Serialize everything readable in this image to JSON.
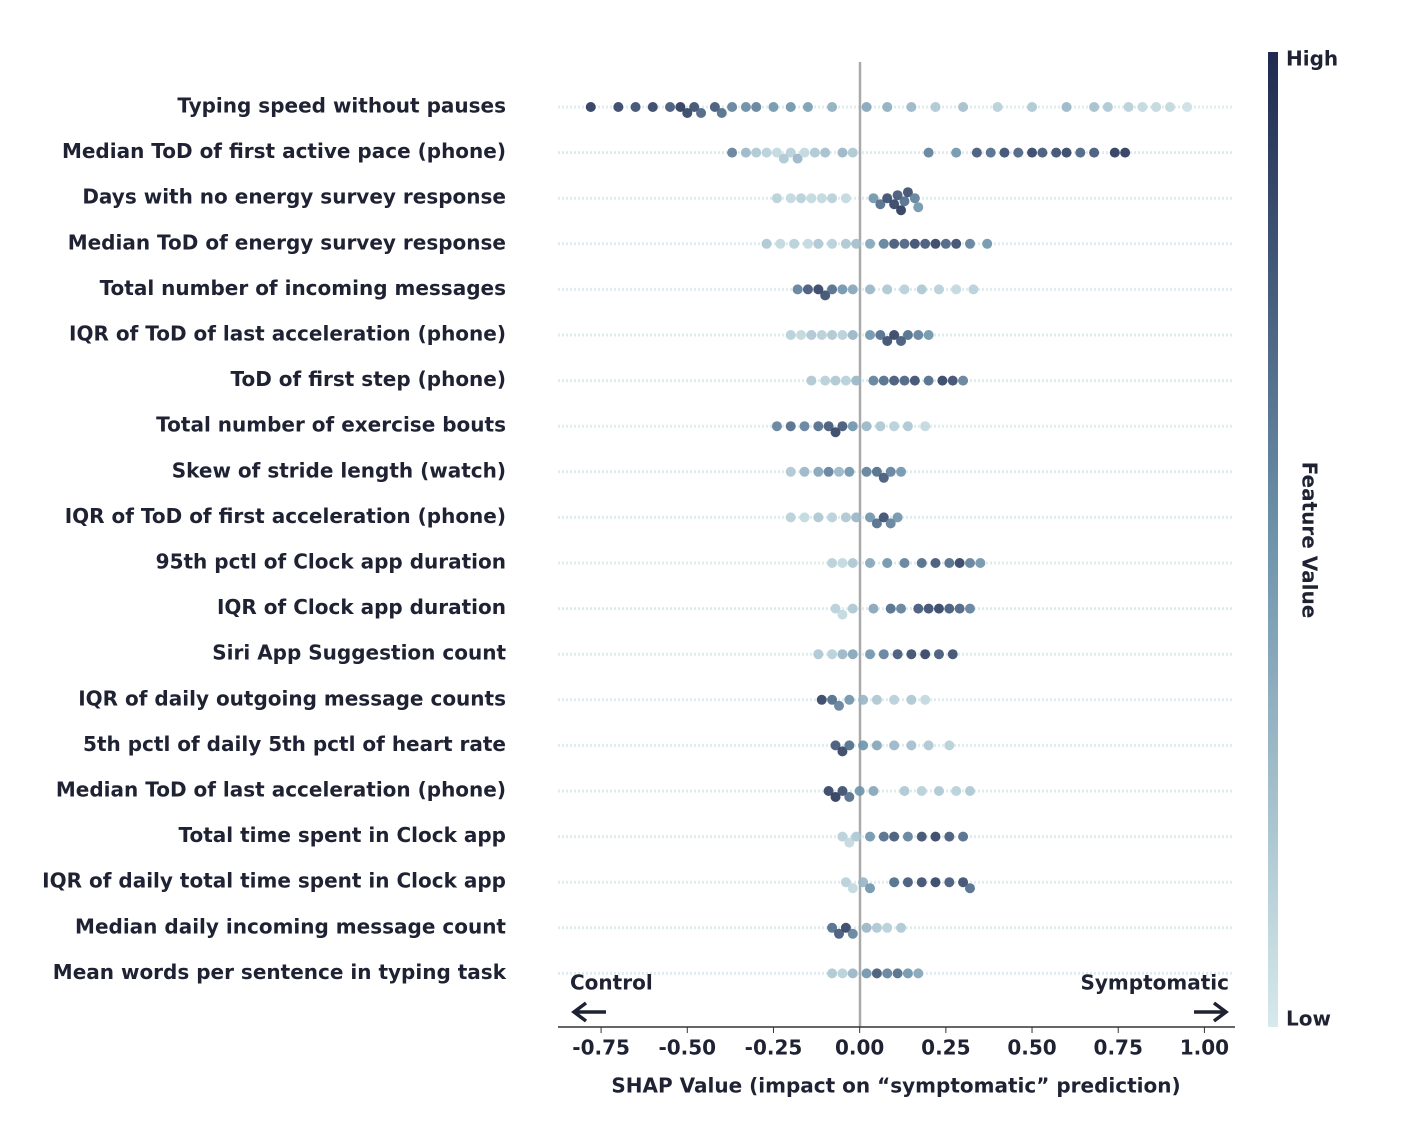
{
  "chart_data": {
    "type": "beeswarm",
    "x_label": "SHAP Value (impact on “symptomatic” prediction)",
    "left_annotation": "Control",
    "right_annotation": "Symptomatic",
    "colorbar": {
      "title": "Feature Value",
      "high_label": "High",
      "low_label": "Low"
    },
    "colormap": [
      "#d6e9eb",
      "#6e93ab",
      "#1f2a50"
    ],
    "xlim": [
      -0.875,
      1.08
    ],
    "xticks": [
      -0.75,
      {
        "value": -0.5,
        "label": "-0.50"
      },
      -0.25,
      {
        "value": 0,
        "label": "0.00"
      },
      0.25,
      {
        "value": 0.5,
        "label": "0.50"
      },
      0.75,
      {
        "value": 1,
        "label": "1.00"
      }
    ],
    "rows": [
      {
        "label": "Typing speed without pauses",
        "points": [
          [
            -0.78,
            0.95
          ],
          [
            -0.7,
            0.9
          ],
          [
            -0.65,
            0.85
          ],
          [
            -0.6,
            0.9
          ],
          [
            -0.55,
            0.8
          ],
          [
            -0.52,
            0.95
          ],
          [
            -0.5,
            0.9
          ],
          [
            -0.48,
            0.85
          ],
          [
            -0.46,
            0.75
          ],
          [
            -0.42,
            0.8
          ],
          [
            -0.4,
            0.7
          ],
          [
            -0.37,
            0.6
          ],
          [
            -0.33,
            0.55
          ],
          [
            -0.3,
            0.6
          ],
          [
            -0.25,
            0.5
          ],
          [
            -0.2,
            0.5
          ],
          [
            -0.15,
            0.45
          ],
          [
            -0.08,
            0.35
          ],
          [
            0.02,
            0.4
          ],
          [
            0.08,
            0.35
          ],
          [
            0.15,
            0.3
          ],
          [
            0.22,
            0.2
          ],
          [
            0.3,
            0.25
          ],
          [
            0.4,
            0.15
          ],
          [
            0.5,
            0.2
          ],
          [
            0.6,
            0.3
          ],
          [
            0.68,
            0.25
          ],
          [
            0.72,
            0.2
          ],
          [
            0.78,
            0.15
          ],
          [
            0.82,
            0.1
          ],
          [
            0.86,
            0.1
          ],
          [
            0.9,
            0.1
          ],
          [
            0.95,
            0.05
          ]
        ]
      },
      {
        "label": "Median ToD of first active pace (phone)",
        "points": [
          [
            -0.37,
            0.6
          ],
          [
            -0.33,
            0.3
          ],
          [
            -0.3,
            0.2
          ],
          [
            -0.27,
            0.15
          ],
          [
            -0.24,
            0.1
          ],
          [
            -0.22,
            0.2
          ],
          [
            -0.2,
            0.15
          ],
          [
            -0.18,
            0.3
          ],
          [
            -0.16,
            0.1
          ],
          [
            -0.13,
            0.2
          ],
          [
            -0.1,
            0.25
          ],
          [
            -0.05,
            0.3
          ],
          [
            -0.02,
            0.2
          ],
          [
            0.2,
            0.6
          ],
          [
            0.28,
            0.5
          ],
          [
            0.34,
            0.8
          ],
          [
            0.38,
            0.7
          ],
          [
            0.42,
            0.85
          ],
          [
            0.46,
            0.75
          ],
          [
            0.5,
            0.9
          ],
          [
            0.53,
            0.8
          ],
          [
            0.57,
            0.85
          ],
          [
            0.6,
            0.9
          ],
          [
            0.64,
            0.75
          ],
          [
            0.68,
            0.8
          ],
          [
            0.74,
            0.95
          ],
          [
            0.77,
            0.95
          ]
        ]
      },
      {
        "label": "Days with no energy survey response",
        "points": [
          [
            -0.24,
            0.15
          ],
          [
            -0.2,
            0.1
          ],
          [
            -0.17,
            0.15
          ],
          [
            -0.14,
            0.1
          ],
          [
            -0.11,
            0.1
          ],
          [
            -0.08,
            0.15
          ],
          [
            -0.04,
            0.1
          ],
          [
            0.04,
            0.5
          ],
          [
            0.06,
            0.7
          ],
          [
            0.08,
            0.85
          ],
          [
            0.1,
            0.9
          ],
          [
            0.11,
            0.8
          ],
          [
            0.12,
            0.95
          ],
          [
            0.13,
            0.7
          ],
          [
            0.14,
            0.85
          ],
          [
            0.16,
            0.6
          ],
          [
            0.17,
            0.5
          ]
        ]
      },
      {
        "label": "Median ToD of energy survey response",
        "points": [
          [
            -0.27,
            0.2
          ],
          [
            -0.23,
            0.1
          ],
          [
            -0.19,
            0.15
          ],
          [
            -0.15,
            0.1
          ],
          [
            -0.12,
            0.2
          ],
          [
            -0.08,
            0.15
          ],
          [
            -0.04,
            0.2
          ],
          [
            -0.01,
            0.25
          ],
          [
            0.03,
            0.4
          ],
          [
            0.07,
            0.6
          ],
          [
            0.1,
            0.8
          ],
          [
            0.13,
            0.75
          ],
          [
            0.16,
            0.85
          ],
          [
            0.19,
            0.8
          ],
          [
            0.22,
            0.9
          ],
          [
            0.25,
            0.75
          ],
          [
            0.28,
            0.85
          ],
          [
            0.32,
            0.6
          ],
          [
            0.37,
            0.5
          ]
        ]
      },
      {
        "label": "Total number of incoming messages",
        "points": [
          [
            -0.18,
            0.6
          ],
          [
            -0.15,
            0.8
          ],
          [
            -0.12,
            0.9
          ],
          [
            -0.1,
            0.85
          ],
          [
            -0.08,
            0.7
          ],
          [
            -0.05,
            0.5
          ],
          [
            -0.02,
            0.4
          ],
          [
            0.03,
            0.3
          ],
          [
            0.08,
            0.2
          ],
          [
            0.13,
            0.15
          ],
          [
            0.18,
            0.2
          ],
          [
            0.23,
            0.15
          ],
          [
            0.28,
            0.1
          ],
          [
            0.33,
            0.15
          ]
        ]
      },
      {
        "label": "IQR of ToD of last acceleration (phone)",
        "points": [
          [
            -0.2,
            0.15
          ],
          [
            -0.17,
            0.1
          ],
          [
            -0.14,
            0.2
          ],
          [
            -0.11,
            0.15
          ],
          [
            -0.08,
            0.2
          ],
          [
            -0.05,
            0.15
          ],
          [
            -0.02,
            0.3
          ],
          [
            0.03,
            0.5
          ],
          [
            0.06,
            0.7
          ],
          [
            0.08,
            0.85
          ],
          [
            0.1,
            0.9
          ],
          [
            0.12,
            0.8
          ],
          [
            0.14,
            0.7
          ],
          [
            0.17,
            0.6
          ],
          [
            0.2,
            0.5
          ]
        ]
      },
      {
        "label": "ToD of first step (phone)",
        "points": [
          [
            -0.14,
            0.2
          ],
          [
            -0.1,
            0.15
          ],
          [
            -0.07,
            0.2
          ],
          [
            -0.04,
            0.15
          ],
          [
            -0.01,
            0.3
          ],
          [
            0.04,
            0.6
          ],
          [
            0.07,
            0.7
          ],
          [
            0.1,
            0.8
          ],
          [
            0.13,
            0.75
          ],
          [
            0.16,
            0.85
          ],
          [
            0.2,
            0.7
          ],
          [
            0.24,
            0.9
          ],
          [
            0.27,
            0.85
          ],
          [
            0.3,
            0.6
          ]
        ]
      },
      {
        "label": "Total number of exercise bouts",
        "points": [
          [
            -0.24,
            0.6
          ],
          [
            -0.2,
            0.7
          ],
          [
            -0.16,
            0.6
          ],
          [
            -0.12,
            0.7
          ],
          [
            -0.09,
            0.8
          ],
          [
            -0.07,
            0.9
          ],
          [
            -0.05,
            0.8
          ],
          [
            -0.02,
            0.5
          ],
          [
            0.02,
            0.3
          ],
          [
            0.06,
            0.2
          ],
          [
            0.1,
            0.15
          ],
          [
            0.14,
            0.2
          ],
          [
            0.19,
            0.1
          ]
        ]
      },
      {
        "label": "Skew of stride length (watch)",
        "points": [
          [
            -0.2,
            0.2
          ],
          [
            -0.16,
            0.3
          ],
          [
            -0.12,
            0.4
          ],
          [
            -0.09,
            0.6
          ],
          [
            -0.06,
            0.3
          ],
          [
            -0.03,
            0.5
          ],
          [
            0.02,
            0.6
          ],
          [
            0.05,
            0.7
          ],
          [
            0.07,
            0.8
          ],
          [
            0.09,
            0.6
          ],
          [
            0.12,
            0.5
          ]
        ]
      },
      {
        "label": "IQR of ToD of first acceleration (phone)",
        "points": [
          [
            -0.2,
            0.15
          ],
          [
            -0.16,
            0.1
          ],
          [
            -0.12,
            0.2
          ],
          [
            -0.08,
            0.15
          ],
          [
            -0.04,
            0.2
          ],
          [
            -0.01,
            0.3
          ],
          [
            0.03,
            0.5
          ],
          [
            0.05,
            0.7
          ],
          [
            0.07,
            0.85
          ],
          [
            0.09,
            0.6
          ],
          [
            0.11,
            0.5
          ]
        ]
      },
      {
        "label": "95th pctl of Clock app duration",
        "points": [
          [
            -0.08,
            0.15
          ],
          [
            -0.05,
            0.1
          ],
          [
            -0.02,
            0.2
          ],
          [
            0.03,
            0.4
          ],
          [
            0.08,
            0.5
          ],
          [
            0.13,
            0.6
          ],
          [
            0.18,
            0.7
          ],
          [
            0.22,
            0.8
          ],
          [
            0.26,
            0.7
          ],
          [
            0.29,
            0.9
          ],
          [
            0.32,
            0.6
          ],
          [
            0.35,
            0.5
          ]
        ]
      },
      {
        "label": "IQR of Clock app duration",
        "points": [
          [
            -0.07,
            0.15
          ],
          [
            -0.05,
            0.1
          ],
          [
            -0.02,
            0.2
          ],
          [
            0.04,
            0.4
          ],
          [
            0.09,
            0.7
          ],
          [
            0.12,
            0.6
          ],
          [
            0.17,
            0.8
          ],
          [
            0.2,
            0.85
          ],
          [
            0.23,
            0.9
          ],
          [
            0.26,
            0.8
          ],
          [
            0.29,
            0.75
          ],
          [
            0.32,
            0.6
          ]
        ]
      },
      {
        "label": "Siri App Suggestion count",
        "points": [
          [
            -0.12,
            0.2
          ],
          [
            -0.08,
            0.15
          ],
          [
            -0.05,
            0.3
          ],
          [
            -0.02,
            0.4
          ],
          [
            0.03,
            0.5
          ],
          [
            0.07,
            0.6
          ],
          [
            0.11,
            0.8
          ],
          [
            0.15,
            0.85
          ],
          [
            0.19,
            0.9
          ],
          [
            0.23,
            0.8
          ],
          [
            0.27,
            0.85
          ]
        ]
      },
      {
        "label": "IQR of daily outgoing message counts",
        "points": [
          [
            -0.11,
            0.9
          ],
          [
            -0.08,
            0.7
          ],
          [
            -0.06,
            0.6
          ],
          [
            -0.03,
            0.5
          ],
          [
            0.01,
            0.3
          ],
          [
            0.05,
            0.2
          ],
          [
            0.1,
            0.15
          ],
          [
            0.15,
            0.2
          ],
          [
            0.19,
            0.1
          ]
        ]
      },
      {
        "label": "5th pctl of daily 5th pctl of heart rate",
        "points": [
          [
            -0.07,
            0.8
          ],
          [
            -0.05,
            0.9
          ],
          [
            -0.03,
            0.7
          ],
          [
            0.01,
            0.5
          ],
          [
            0.05,
            0.4
          ],
          [
            0.1,
            0.3
          ],
          [
            0.15,
            0.25
          ],
          [
            0.2,
            0.2
          ],
          [
            0.26,
            0.15
          ]
        ]
      },
      {
        "label": "Median ToD of last acceleration (phone)",
        "points": [
          [
            -0.09,
            0.9
          ],
          [
            -0.07,
            0.95
          ],
          [
            -0.05,
            0.85
          ],
          [
            -0.03,
            0.7
          ],
          [
            0.0,
            0.5
          ],
          [
            0.04,
            0.4
          ],
          [
            0.13,
            0.2
          ],
          [
            0.18,
            0.15
          ],
          [
            0.23,
            0.2
          ],
          [
            0.28,
            0.15
          ],
          [
            0.32,
            0.2
          ]
        ]
      },
      {
        "label": "Total time spent in Clock app",
        "points": [
          [
            -0.05,
            0.15
          ],
          [
            -0.03,
            0.1
          ],
          [
            -0.01,
            0.2
          ],
          [
            0.03,
            0.5
          ],
          [
            0.07,
            0.7
          ],
          [
            0.1,
            0.8
          ],
          [
            0.14,
            0.6
          ],
          [
            0.18,
            0.85
          ],
          [
            0.22,
            0.9
          ],
          [
            0.26,
            0.8
          ],
          [
            0.3,
            0.7
          ]
        ]
      },
      {
        "label": "IQR of daily total time spent in Clock app",
        "points": [
          [
            -0.04,
            0.15
          ],
          [
            -0.02,
            0.1
          ],
          [
            0.01,
            0.3
          ],
          [
            0.03,
            0.5
          ],
          [
            0.1,
            0.7
          ],
          [
            0.14,
            0.8
          ],
          [
            0.18,
            0.85
          ],
          [
            0.22,
            0.9
          ],
          [
            0.26,
            0.8
          ],
          [
            0.3,
            0.85
          ],
          [
            0.32,
            0.7
          ]
        ]
      },
      {
        "label": "Median daily incoming message count",
        "points": [
          [
            -0.08,
            0.7
          ],
          [
            -0.06,
            0.8
          ],
          [
            -0.04,
            0.9
          ],
          [
            -0.02,
            0.6
          ],
          [
            0.02,
            0.3
          ],
          [
            0.05,
            0.2
          ],
          [
            0.08,
            0.15
          ],
          [
            0.12,
            0.2
          ]
        ]
      },
      {
        "label": "Mean words per sentence in typing task",
        "points": [
          [
            -0.08,
            0.2
          ],
          [
            -0.05,
            0.15
          ],
          [
            -0.02,
            0.3
          ],
          [
            0.02,
            0.5
          ],
          [
            0.05,
            0.8
          ],
          [
            0.08,
            0.6
          ],
          [
            0.11,
            0.7
          ],
          [
            0.14,
            0.5
          ],
          [
            0.17,
            0.4
          ]
        ]
      }
    ]
  }
}
